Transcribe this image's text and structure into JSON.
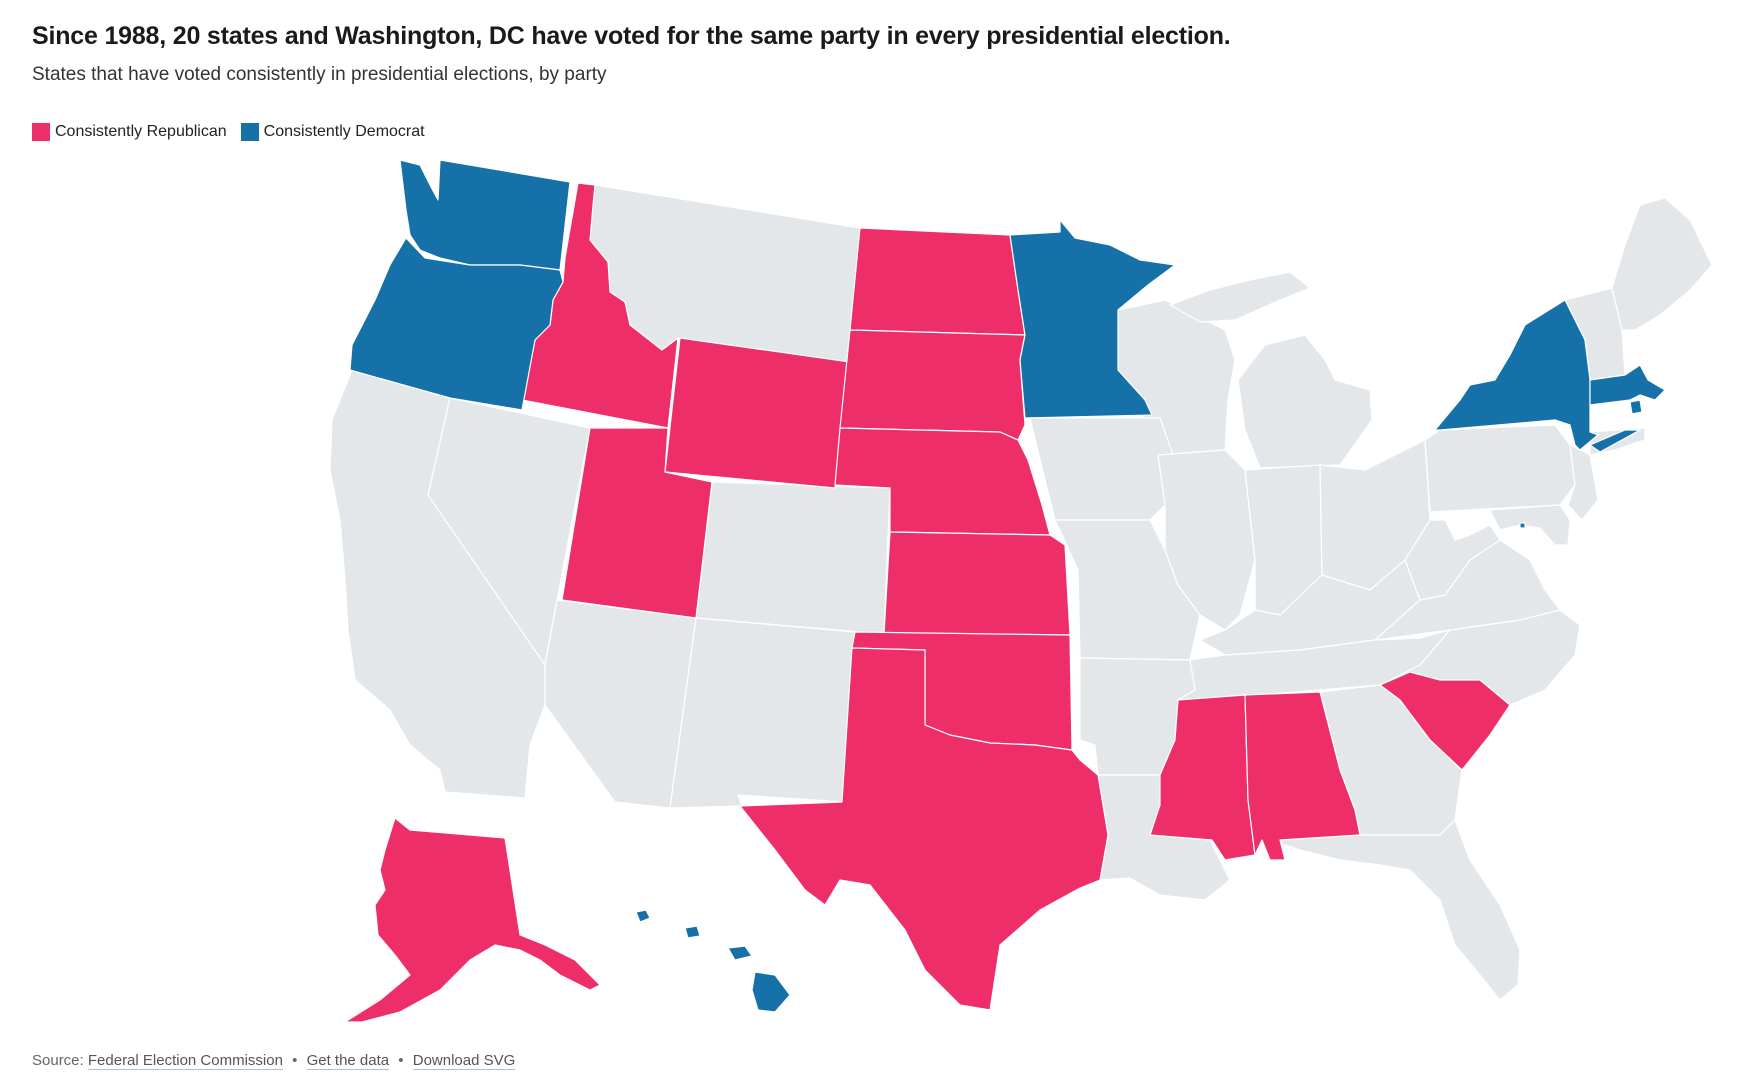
{
  "header": {
    "title": "Since 1988, 20 states and Washington, DC have voted for the same party in every presidential election.",
    "subtitle": "States that have voted consistently in presidential elections, by party"
  },
  "legend": {
    "items": [
      {
        "label": "Consistently Republican",
        "color": "#ee2e68"
      },
      {
        "label": "Consistently Democrat",
        "color": "#1571a8"
      }
    ]
  },
  "colors": {
    "republican": "#ee2e68",
    "democrat": "#1571a8",
    "other": "#e3e7ea"
  },
  "footer": {
    "source_prefix": "Source:",
    "source_link": "Federal Election Commission",
    "bullet": "•",
    "get_data": "Get the data",
    "download": "Download SVG"
  }
}
